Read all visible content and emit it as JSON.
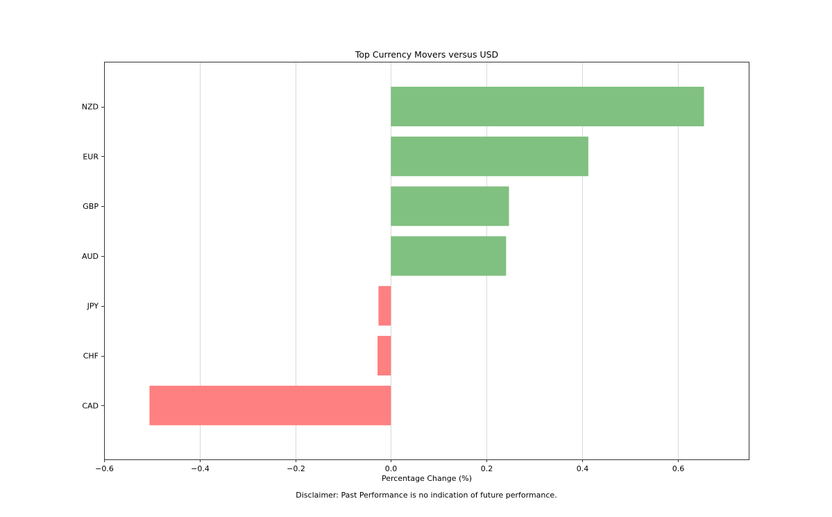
{
  "chart_data": {
    "type": "bar",
    "orientation": "horizontal",
    "title": "Top Currency Movers versus USD",
    "xlabel": "Percentage Change (%)",
    "ylabel": "",
    "categories": [
      "NZD",
      "EUR",
      "GBP",
      "AUD",
      "JPY",
      "CHF",
      "CAD"
    ],
    "values": [
      0.655,
      0.413,
      0.247,
      0.241,
      -0.026,
      -0.028,
      -0.505
    ],
    "xlim": [
      -0.6,
      0.75
    ],
    "xticks": [
      -0.6,
      -0.4,
      -0.2,
      0.0,
      0.2,
      0.4,
      0.6
    ],
    "xtick_labels": [
      "−0.6",
      "−0.4",
      "−0.2",
      "0.0",
      "0.2",
      "0.4",
      "0.6"
    ],
    "grid": "vertical",
    "positive_color": "#80c080",
    "negative_color": "#ff8080",
    "grid_color": "#d9d9d9"
  },
  "footer": {
    "disclaimer": "Disclaimer: Past Performance is no indication of future performance."
  }
}
